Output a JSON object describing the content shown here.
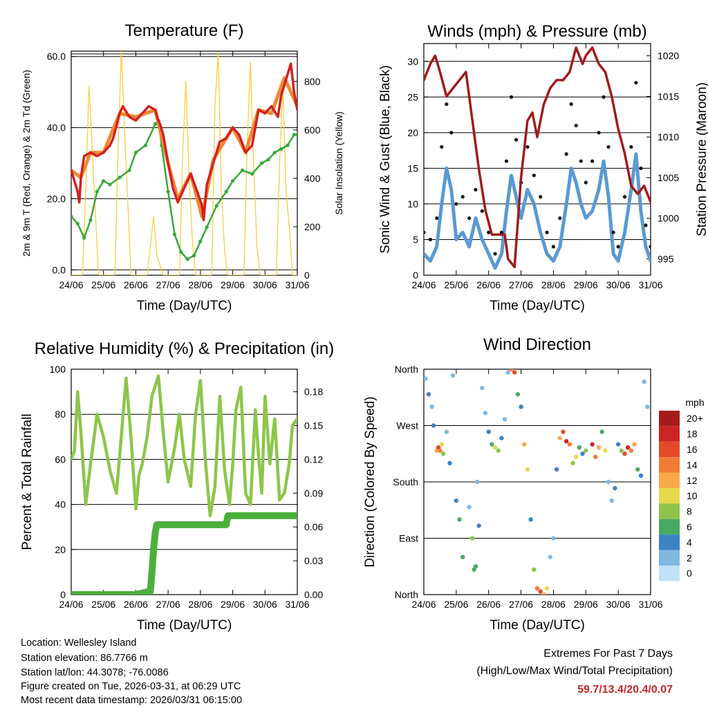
{
  "chart_data": [
    {
      "type": "line",
      "title": "Temperature (F)",
      "xlabel": "Time (Day/UTC)",
      "ylabel": "2m & 9m T (Red, Orange) & 2m Td (Green)",
      "ylabel_right": "Solar Insolation (Yellow)",
      "x_ticks": [
        "24/06",
        "25/06",
        "26/06",
        "27/06",
        "28/06",
        "29/06",
        "30/06",
        "31/06"
      ],
      "y_ticks": [
        "0.0",
        "20.0",
        "40.0",
        "60.0"
      ],
      "y_ticks_right": [
        "0",
        "200",
        "400",
        "600",
        "800"
      ],
      "ylim": [
        -1.5,
        61.5
      ],
      "ylim_right": [
        0,
        925
      ],
      "colors": {
        "t2m": "#d42020",
        "t9m": "#f08a30",
        "td": "#3aa83a",
        "solar": "#f5d040"
      },
      "series": [
        {
          "name": "2m T",
          "x": [
            0,
            0.1,
            0.2,
            0.25,
            0.3,
            0.4,
            0.6,
            0.8,
            1.0,
            1.2,
            1.3,
            1.5,
            1.6,
            1.8,
            2.0,
            2.2,
            2.4,
            2.6,
            2.7,
            2.75,
            2.85,
            3.0,
            3.15,
            3.3,
            3.5,
            3.7,
            3.9,
            4.05,
            4.1,
            4.2,
            4.4,
            4.6,
            4.8,
            5.0,
            5.2,
            5.4,
            5.6,
            5.8,
            6.0,
            6.2,
            6.4,
            6.5,
            6.6,
            6.7,
            6.8,
            6.9,
            7.0
          ],
          "values": [
            28,
            25,
            22,
            19,
            26,
            32,
            33,
            32,
            33,
            35,
            37,
            44,
            46,
            43,
            42,
            44,
            46,
            45,
            42,
            41,
            38,
            30,
            23,
            19,
            23,
            27,
            22,
            18,
            14,
            24,
            30,
            36,
            37,
            40,
            38,
            33,
            35,
            45,
            44,
            46,
            43,
            49,
            52,
            55,
            58,
            50,
            45
          ]
        },
        {
          "name": "9m T",
          "x": [
            0,
            0.3,
            0.6,
            1.0,
            1.5,
            2.0,
            2.6,
            3.0,
            3.3,
            3.7,
            4.05,
            4.4,
            5.0,
            5.4,
            5.8,
            6.2,
            6.6,
            6.8,
            7.0
          ],
          "values": [
            28,
            26,
            33,
            33,
            44,
            43,
            45,
            30,
            20,
            27,
            15,
            31,
            40,
            33,
            45,
            44,
            54,
            50,
            46
          ]
        },
        {
          "name": "2m Td",
          "x": [
            0,
            0.2,
            0.4,
            0.6,
            0.8,
            1.0,
            1.2,
            1.5,
            1.8,
            2.0,
            2.3,
            2.6,
            2.7,
            2.8,
            3.0,
            3.2,
            3.4,
            3.6,
            3.8,
            4.0,
            4.2,
            4.5,
            4.8,
            5.0,
            5.3,
            5.6,
            5.9,
            6.1,
            6.3,
            6.5,
            6.7,
            6.9,
            7.0
          ],
          "values": [
            15,
            13,
            9,
            14,
            22,
            25,
            24,
            26,
            28,
            33,
            35,
            41,
            42,
            35,
            22,
            10,
            5,
            3,
            4,
            8,
            12,
            18,
            22,
            25,
            28,
            27,
            30,
            31,
            33,
            34,
            35,
            38,
            38
          ]
        },
        {
          "name": "Solar Insolation",
          "axis": "right",
          "x": [
            0,
            0.35,
            0.45,
            0.55,
            0.65,
            0.75,
            0.85,
            1.35,
            1.45,
            1.55,
            1.65,
            1.75,
            1.85,
            2.35,
            2.45,
            2.55,
            2.65,
            2.75,
            2.85,
            3.35,
            3.45,
            3.55,
            3.65,
            3.75,
            3.85,
            4.35,
            4.45,
            4.55,
            4.65,
            4.75,
            4.85,
            5.35,
            5.45,
            5.55,
            5.65,
            5.75,
            5.85,
            6.35,
            6.45,
            6.55,
            6.65,
            6.75,
            6.85,
            7.0
          ],
          "values": [
            0,
            0,
            350,
            780,
            520,
            250,
            0,
            0,
            500,
            930,
            600,
            300,
            0,
            0,
            120,
            240,
            80,
            40,
            0,
            0,
            500,
            800,
            400,
            150,
            0,
            0,
            700,
            920,
            350,
            100,
            0,
            0,
            550,
            880,
            450,
            120,
            0,
            0,
            450,
            780,
            350,
            200,
            0,
            0
          ]
        }
      ]
    },
    {
      "type": "line",
      "title": "Winds (mph) & Pressure (mb)",
      "xlabel": "Time (Day/UTC)",
      "ylabel": "Sonic Wind & Gust (Blue, Black)",
      "ylabel_right": "Station Pressure (Maroon)",
      "x_ticks": [
        "24/06",
        "25/06",
        "26/06",
        "27/06",
        "28/06",
        "29/06",
        "30/06",
        "31/06"
      ],
      "y_ticks": [
        "0",
        "5",
        "10",
        "15",
        "20",
        "25",
        "30"
      ],
      "y_ticks_right": [
        "995",
        "1000",
        "1005",
        "1010",
        "1015",
        "1020"
      ],
      "ylim": [
        0,
        32.5
      ],
      "ylim_right": [
        993,
        1021.5
      ],
      "colors": {
        "wind": "#5a9ad2",
        "gust": "#111111",
        "pressure": "#a01c1c"
      },
      "series": [
        {
          "name": "Sonic Wind",
          "x": [
            0,
            0.2,
            0.4,
            0.55,
            0.7,
            0.85,
            1.0,
            1.2,
            1.4,
            1.6,
            1.8,
            2.0,
            2.2,
            2.4,
            2.55,
            2.7,
            2.85,
            3.0,
            3.2,
            3.4,
            3.6,
            3.8,
            4.0,
            4.2,
            4.4,
            4.55,
            4.7,
            4.85,
            5.0,
            5.2,
            5.4,
            5.55,
            5.7,
            5.85,
            6.0,
            6.2,
            6.4,
            6.55,
            6.7,
            6.85,
            7.0
          ],
          "values": [
            3,
            2,
            4,
            10,
            15,
            12,
            5,
            6,
            4,
            8,
            5,
            3,
            1,
            3,
            9,
            14,
            11,
            8,
            12,
            10,
            6,
            3,
            2,
            4,
            10,
            15,
            13,
            10,
            8,
            9,
            12,
            16,
            11,
            3,
            2,
            6,
            12,
            17,
            9,
            4,
            2
          ]
        },
        {
          "name": "Gust",
          "x": [
            0,
            0.2,
            0.4,
            0.55,
            0.7,
            0.85,
            1.0,
            1.2,
            1.4,
            1.6,
            1.8,
            2.0,
            2.2,
            2.4,
            2.55,
            2.7,
            2.85,
            3.0,
            3.2,
            3.4,
            3.6,
            3.8,
            4.0,
            4.2,
            4.4,
            4.55,
            4.7,
            4.85,
            5.0,
            5.2,
            5.4,
            5.55,
            5.7,
            5.85,
            6.0,
            6.2,
            6.4,
            6.55,
            6.7,
            6.85,
            7.0
          ],
          "values": [
            6,
            5,
            8,
            18,
            24,
            20,
            10,
            11,
            8,
            12,
            9,
            6,
            3,
            6,
            16,
            25,
            19,
            13,
            18,
            14,
            11,
            6,
            4,
            8,
            17,
            24,
            21,
            16,
            13,
            16,
            20,
            25,
            18,
            6,
            4,
            11,
            18,
            27,
            15,
            7,
            4
          ]
        },
        {
          "name": "Station Pressure",
          "axis": "right",
          "x": [
            0,
            0.2,
            0.35,
            0.5,
            0.7,
            0.9,
            1.1,
            1.3,
            1.5,
            1.7,
            1.9,
            2.1,
            2.3,
            2.5,
            2.6,
            2.8,
            3.0,
            3.2,
            3.35,
            3.5,
            3.7,
            3.9,
            4.1,
            4.3,
            4.5,
            4.7,
            4.9,
            5.0,
            5.2,
            5.4,
            5.6,
            5.8,
            6.0,
            6.2,
            6.4,
            6.6,
            6.8,
            7.0
          ],
          "values": [
            1017,
            1019,
            1020,
            1018,
            1015,
            1016,
            1017,
            1018,
            1012,
            1006,
            1001,
            998,
            998,
            998,
            995,
            994,
            1005,
            1012,
            1013,
            1010,
            1014,
            1016,
            1017,
            1017,
            1018,
            1021,
            1019,
            1020,
            1021,
            1019,
            1018,
            1015,
            1011,
            1008,
            1004,
            1003,
            1004,
            1002
          ]
        }
      ]
    },
    {
      "type": "line",
      "title": "Relative Humidity (%) & Precipitation (in)",
      "xlabel": "Time (Day/UTC)",
      "ylabel": "Percent & Total Rainfall",
      "x_ticks": [
        "24/06",
        "25/06",
        "26/06",
        "27/06",
        "28/06",
        "29/06",
        "30/06",
        "31/06"
      ],
      "y_ticks": [
        "0",
        "20",
        "40",
        "60",
        "80",
        "100"
      ],
      "y_ticks_right": [
        "0.00",
        "0.03",
        "0.06",
        "0.09",
        "0.12",
        "0.15",
        "0.18"
      ],
      "ylim": [
        0,
        100
      ],
      "ylim_right": [
        0,
        0.2
      ],
      "colors": {
        "rh": "#8cc64a",
        "precip": "#4caf3c"
      },
      "series": [
        {
          "name": "Relative Humidity",
          "x": [
            0,
            0.1,
            0.2,
            0.3,
            0.45,
            0.6,
            0.8,
            1.0,
            1.2,
            1.4,
            1.55,
            1.7,
            1.85,
            2.0,
            2.1,
            2.2,
            2.35,
            2.5,
            2.7,
            2.85,
            3.0,
            3.2,
            3.35,
            3.5,
            3.7,
            3.85,
            4.0,
            4.15,
            4.3,
            4.45,
            4.6,
            4.75,
            4.9,
            5.0,
            5.1,
            5.25,
            5.4,
            5.55,
            5.7,
            5.8,
            5.9,
            6.0,
            6.15,
            6.3,
            6.45,
            6.6,
            6.75,
            6.85,
            7.0
          ],
          "values": [
            60,
            64,
            90,
            72,
            40,
            58,
            80,
            70,
            55,
            45,
            70,
            96,
            70,
            38,
            53,
            58,
            70,
            88,
            97,
            72,
            50,
            65,
            80,
            60,
            48,
            80,
            95,
            60,
            35,
            48,
            88,
            55,
            40,
            58,
            82,
            92,
            45,
            40,
            82,
            62,
            45,
            88,
            58,
            78,
            42,
            45,
            58,
            75,
            78
          ]
        },
        {
          "name": "Total Rainfall",
          "axis": "right",
          "x": [
            0,
            1.0,
            2.0,
            2.45,
            2.5,
            2.55,
            2.6,
            2.65,
            3.0,
            4.0,
            4.8,
            4.85,
            5.0,
            6.0,
            7.0
          ],
          "values": [
            0,
            0,
            0,
            0.003,
            0.02,
            0.04,
            0.055,
            0.062,
            0.062,
            0.062,
            0.062,
            0.07,
            0.07,
            0.07,
            0.07
          ]
        }
      ]
    },
    {
      "type": "scatter",
      "title": "Wind Direction",
      "xlabel": "Time (Day/UTC)",
      "ylabel": "Direction (Colored By Speed)",
      "x_ticks": [
        "24/06",
        "25/06",
        "26/06",
        "27/06",
        "28/06",
        "29/06",
        "30/06",
        "31/06"
      ],
      "y_ticks": [
        "North",
        "East",
        "South",
        "West",
        "North"
      ],
      "ylim": [
        0,
        360
      ],
      "legend": {
        "title": "mph",
        "labels": [
          "20+",
          "18",
          "16",
          "14",
          "12",
          "10",
          "8",
          "6",
          "4",
          "2",
          "0"
        ],
        "colors": [
          "#a51b1b",
          "#cc2424",
          "#e34a2c",
          "#f27b34",
          "#f8a94a",
          "#e8d84c",
          "#8cc44a",
          "#4ba864",
          "#3d82c4",
          "#80b8e2",
          "#bfe2f7"
        ]
      },
      "series": [
        {
          "name": "Direction",
          "x": [
            0.05,
            0.15,
            0.25,
            0.3,
            0.4,
            0.45,
            0.5,
            0.55,
            0.6,
            0.7,
            0.8,
            0.9,
            1.0,
            1.1,
            1.2,
            1.4,
            1.5,
            1.55,
            1.6,
            1.65,
            1.7,
            1.8,
            1.9,
            2.0,
            2.1,
            2.2,
            2.3,
            2.4,
            2.5,
            2.6,
            2.7,
            2.8,
            2.9,
            3.0,
            3.1,
            3.2,
            3.3,
            3.4,
            3.5,
            3.6,
            3.7,
            3.8,
            3.9,
            4.0,
            4.1,
            4.2,
            4.3,
            4.4,
            4.5,
            4.6,
            4.7,
            4.8,
            4.9,
            5.0,
            5.2,
            5.3,
            5.4,
            5.5,
            5.6,
            5.7,
            5.8,
            5.9,
            6.0,
            6.1,
            6.2,
            6.3,
            6.4,
            6.5,
            6.6,
            6.7,
            6.8,
            6.9
          ],
          "values": [
            345,
            320,
            300,
            270,
            230,
            235,
            230,
            240,
            225,
            260,
            210,
            350,
            150,
            120,
            60,
            140,
            90,
            40,
            45,
            180,
            110,
            330,
            290,
            260,
            240,
            235,
            230,
            250,
            280,
            355,
            360,
            355,
            320,
            300,
            240,
            200,
            120,
            40,
            10,
            5,
            0,
            10,
            60,
            90,
            200,
            250,
            260,
            245,
            240,
            210,
            220,
            235,
            225,
            230,
            240,
            220,
            235,
            260,
            230,
            180,
            150,
            170,
            240,
            230,
            225,
            235,
            230,
            240,
            200,
            190,
            340,
            300
          ],
          "speeds": [
            2,
            4,
            1,
            3,
            12,
            16,
            14,
            10,
            8,
            2,
            3,
            1,
            4,
            6,
            5,
            2,
            8,
            6,
            5,
            1,
            3,
            1,
            2,
            3,
            6,
            10,
            8,
            4,
            2,
            1,
            14,
            16,
            6,
            3,
            12,
            10,
            4,
            8,
            14,
            16,
            12,
            10,
            2,
            1,
            3,
            12,
            16,
            18,
            14,
            8,
            10,
            6,
            4,
            8,
            18,
            14,
            12,
            6,
            10,
            2,
            1,
            3,
            4,
            8,
            16,
            18,
            14,
            12,
            6,
            4,
            1,
            2
          ]
        }
      ]
    }
  ],
  "info": {
    "location": "Location: Wellesley Island",
    "elevation": "Station elevation: 86.7766 m",
    "latlon": "Station lat/lon: 44.3078; -76.0086",
    "created": "Figure created on Tue, 2026-03-31, at 06:29 UTC",
    "latest": "Most recent data timestamp: 2026/03/31 06:15:00"
  },
  "extremes": {
    "title": "Extremes For Past 7 Days",
    "subtitle": "(High/Low/Max Wind/Total Precipitation)",
    "values": "59.7/13.4/20.4/0.07"
  }
}
